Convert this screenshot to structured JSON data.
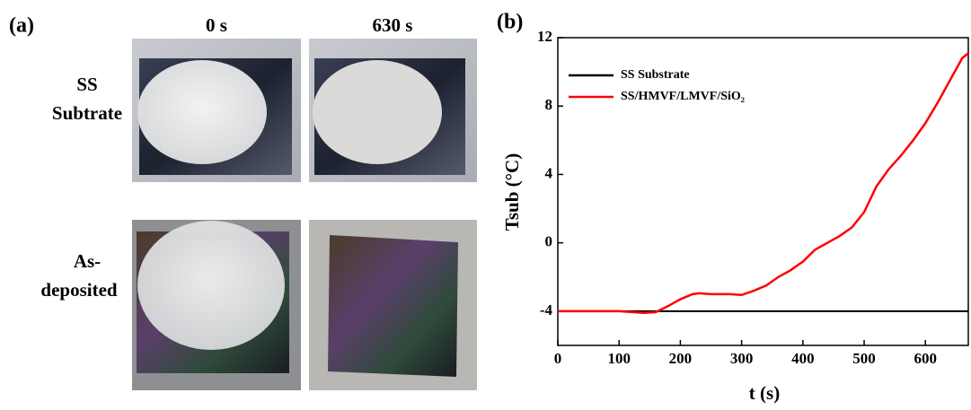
{
  "panel_a": {
    "label": "(a)",
    "columns": [
      "0 s",
      "630 s"
    ],
    "rows": [
      [
        "SS",
        "Subtrate"
      ],
      [
        "As-",
        "deposited"
      ]
    ]
  },
  "chart_data": {
    "type": "line",
    "panel_label": "(b)",
    "x_label": "t (s)",
    "y_label": "Tsub (°C)",
    "x": [
      0,
      100,
      140,
      160,
      180,
      200,
      220,
      230,
      250,
      280,
      300,
      320,
      340,
      360,
      380,
      400,
      420,
      440,
      460,
      480,
      500,
      520,
      540,
      560,
      580,
      600,
      620,
      640,
      660,
      670
    ],
    "series": [
      {
        "name": "SS Substrate",
        "color": "#000000",
        "values": [
          -4,
          -4,
          -4,
          -4,
          -4,
          -4,
          -4,
          -4,
          -4,
          -4,
          -4,
          -4,
          -4,
          -4,
          -4,
          -4,
          -4,
          -4,
          -4,
          -4,
          -4,
          -4,
          -4,
          -4,
          -4,
          -4,
          -4,
          -4,
          -4,
          -4
        ]
      },
      {
        "name": "SS/HMVF/LMVF/SiO₂",
        "color": "#ff0000",
        "values": [
          -4,
          -4,
          -4.1,
          -4.05,
          -3.7,
          -3.3,
          -3.0,
          -2.95,
          -3.0,
          -3.0,
          -3.05,
          -2.8,
          -2.5,
          -2.0,
          -1.6,
          -1.1,
          -0.4,
          0,
          0.4,
          0.9,
          1.8,
          3.3,
          4.3,
          5.1,
          6.0,
          7.0,
          8.2,
          9.5,
          10.8,
          11.1
        ]
      }
    ],
    "xlim": [
      0,
      670
    ],
    "xticks": [
      0,
      100,
      200,
      300,
      400,
      500,
      600
    ],
    "ylim": [
      -6,
      12
    ],
    "yticks": [
      -4,
      0,
      4,
      8,
      12
    ],
    "legend": "upper left"
  }
}
